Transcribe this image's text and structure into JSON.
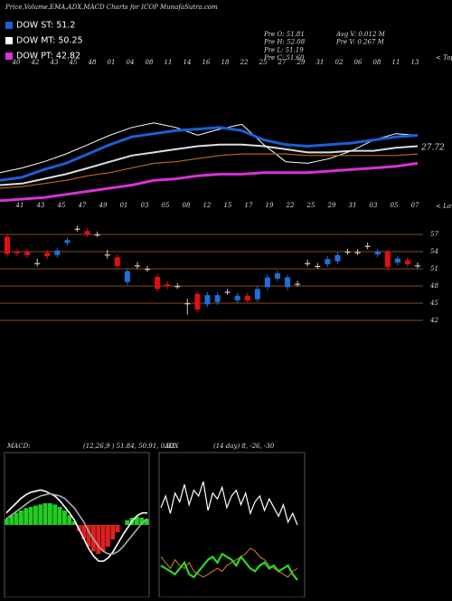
{
  "header": {
    "title": "Price,Volume,EMA,ADX,MACD Charts for ICOP MunafaSutra.com",
    "legend": [
      {
        "name": "DOW ST: 51.2",
        "color": "#1a5fd6"
      },
      {
        "name": "DOW MT: 50.25",
        "color": "#ffffff"
      },
      {
        "name": "DOW PT: 42.82",
        "color": "#d633d6"
      }
    ],
    "stats": [
      "Pre O: 51.81",
      "Pre H: 52.08",
      "Pre L: 51.19",
      "Pre C: 51.60",
      "Avg V: 0.012 M",
      "Pre V: 0.267 M"
    ]
  },
  "chart_data": [
    {
      "type": "line",
      "top_label": "< Tope",
      "bottom_label": "< Lowe",
      "annotation": "27.72",
      "top_categories": [
        "40",
        "42",
        "43",
        "45",
        "48",
        "01",
        "04",
        "08",
        "11",
        "14",
        "16",
        "18",
        "22",
        "25",
        "27",
        "29",
        "31",
        "02",
        "06",
        "08",
        "11",
        "13"
      ],
      "bottom_categories": [
        "41",
        "43",
        "45",
        "47",
        "49",
        "01",
        "03",
        "05",
        "08",
        "12",
        "15",
        "17",
        "19",
        "22",
        "25",
        "29",
        "31",
        "03",
        "05",
        "07"
      ],
      "ylim": [
        0,
        100
      ],
      "series": [
        {
          "name": "Price",
          "color": "#ffffff",
          "width": 1,
          "values": [
            24,
            27,
            31,
            36,
            42,
            48,
            53,
            56,
            53,
            48,
            52,
            55,
            42,
            31,
            30,
            33,
            38,
            45,
            49,
            48
          ]
        },
        {
          "name": "ST",
          "color": "#1a5fd6",
          "width": 3,
          "values": [
            19,
            21,
            26,
            30,
            36,
            42,
            47,
            49,
            51,
            52,
            53,
            51,
            45,
            42,
            41,
            42,
            43,
            45,
            47,
            48
          ]
        },
        {
          "name": "MT",
          "color": "#dddddd",
          "width": 2,
          "values": [
            16,
            17,
            20,
            23,
            27,
            31,
            35,
            37,
            39,
            41,
            42,
            42,
            41,
            39,
            37,
            37,
            38,
            38,
            40,
            41
          ]
        },
        {
          "name": "Long",
          "color": "#b8651b",
          "width": 1.2,
          "values": [
            14,
            15,
            17,
            19,
            22,
            24,
            27,
            30,
            31,
            33,
            35,
            36,
            36,
            36,
            35,
            35,
            35,
            35,
            35,
            36
          ]
        },
        {
          "name": "PT",
          "color": "#d633d6",
          "width": 3,
          "values": [
            6,
            7,
            8,
            10,
            12,
            14,
            16,
            19,
            20,
            22,
            23,
            23,
            24,
            24,
            24,
            25,
            26,
            27,
            28,
            30
          ]
        }
      ]
    },
    {
      "type": "candlestick",
      "ylim": [
        40,
        59
      ],
      "yticks": [
        57,
        54,
        51,
        48,
        45,
        42
      ],
      "up_color": "#1e6fd9",
      "down_color": "#e01010",
      "flat_color": "#cccccc",
      "grid_color": "#b8651b",
      "open": [
        56.6,
        54.0,
        54.0,
        52.0,
        53.8,
        53.4,
        55.5,
        58.0,
        57.6,
        57.0,
        53.5,
        53.0,
        48.7,
        51.6,
        51.0,
        49.6,
        48.3,
        48.0,
        45.0,
        46.6,
        44.8,
        45.2,
        47.0,
        45.5,
        46.3,
        45.7,
        47.8,
        49.3,
        47.8,
        48.4,
        52.0,
        51.5,
        51.8,
        52.3,
        54.0,
        53.9,
        55.0,
        53.5,
        53.9,
        52.1,
        52.5,
        51.6
      ],
      "high": [
        57.1,
        54.5,
        54.5,
        52.8,
        54.3,
        54.7,
        56.5,
        58.5,
        58.1,
        57.5,
        54.3,
        53.5,
        51.1,
        52.2,
        51.5,
        50.1,
        48.8,
        48.5,
        45.8,
        47.1,
        46.9,
        46.9,
        47.5,
        46.8,
        46.8,
        48.0,
        50.0,
        50.7,
        50.0,
        48.9,
        52.6,
        52.0,
        53.2,
        53.9,
        54.5,
        54.4,
        55.6,
        54.5,
        54.4,
        53.3,
        53.0,
        52.1
      ],
      "low": [
        53.1,
        53.2,
        52.9,
        51.4,
        52.7,
        52.9,
        55.0,
        57.5,
        56.5,
        56.5,
        52.8,
        51.0,
        48.2,
        51.0,
        50.5,
        47.0,
        47.4,
        47.5,
        43.0,
        43.4,
        44.3,
        44.7,
        46.5,
        45.0,
        45.0,
        45.2,
        47.3,
        48.8,
        47.3,
        47.9,
        51.4,
        51.0,
        51.3,
        51.8,
        53.5,
        53.4,
        54.4,
        53.0,
        50.8,
        51.6,
        51.3,
        51.1
      ],
      "close": [
        53.6,
        53.7,
        53.4,
        52.0,
        53.2,
        54.2,
        56.0,
        58.0,
        57.0,
        57.0,
        53.5,
        51.5,
        50.6,
        51.6,
        51.0,
        47.5,
        47.9,
        48.0,
        45.0,
        43.9,
        46.4,
        46.4,
        47.0,
        46.3,
        45.5,
        47.5,
        49.5,
        50.2,
        49.5,
        48.4,
        52.0,
        51.5,
        52.7,
        53.4,
        54.0,
        53.9,
        55.0,
        54.0,
        51.3,
        52.8,
        51.8,
        51.6
      ]
    },
    {
      "type": "macd",
      "title": "MACD:",
      "subtitle": "(12,26,9 ) 51.84, 50.91, 0.93",
      "ylim": [
        -60,
        60
      ],
      "pos_color": "#22cc22",
      "neg_color": "#e02020",
      "histogram": [
        5,
        8,
        10,
        12,
        14,
        15,
        16,
        17,
        18,
        18,
        17,
        15,
        12,
        8,
        3,
        -5,
        -12,
        -18,
        -22,
        -24,
        -22,
        -18,
        -12,
        -6,
        0,
        4,
        6,
        7,
        6,
        5
      ],
      "series": [
        {
          "name": "MACD",
          "color": "#ffffff",
          "width": 1.6,
          "values": [
            10,
            14,
            18,
            22,
            25,
            27,
            28,
            29,
            28,
            26,
            24,
            20,
            15,
            10,
            4,
            -4,
            -12,
            -20,
            -26,
            -30,
            -30,
            -27,
            -22,
            -15,
            -8,
            -2,
            4,
            8,
            10,
            10
          ]
        },
        {
          "name": "Signal",
          "color": "#aaaaaa",
          "width": 1.6,
          "values": [
            5,
            8,
            11,
            14,
            17,
            20,
            22,
            24,
            25,
            26,
            25,
            24,
            22,
            18,
            14,
            8,
            2,
            -6,
            -12,
            -18,
            -22,
            -24,
            -24,
            -22,
            -18,
            -13,
            -8,
            -3,
            2,
            5
          ]
        }
      ]
    },
    {
      "type": "adx",
      "title": "ADX",
      "subtitle": "(14 day) 8, -26, -30",
      "ylim": [
        0,
        100
      ],
      "series": [
        {
          "name": "+DI",
          "color": "#ffffff",
          "width": 1.2,
          "values": [
            62,
            70,
            58,
            72,
            66,
            78,
            64,
            74,
            70,
            80,
            60,
            72,
            68,
            76,
            62,
            70,
            74,
            64,
            72,
            58,
            66,
            70,
            60,
            68,
            62,
            56,
            64,
            52,
            58,
            50
          ]
        },
        {
          "name": "ADX",
          "color": "#22dd22",
          "width": 2.2,
          "values": [
            22,
            20,
            18,
            16,
            20,
            24,
            16,
            14,
            18,
            22,
            26,
            28,
            24,
            30,
            28,
            26,
            22,
            28,
            24,
            20,
            18,
            22,
            24,
            20,
            22,
            18,
            20,
            22,
            16,
            12
          ]
        },
        {
          "name": "-DI",
          "color": "#d9822b",
          "width": 1,
          "values": [
            28,
            24,
            20,
            26,
            22,
            20,
            24,
            18,
            16,
            14,
            16,
            18,
            20,
            18,
            22,
            24,
            26,
            28,
            30,
            34,
            32,
            28,
            26,
            22,
            20,
            18,
            16,
            14,
            18,
            20
          ]
        }
      ]
    }
  ]
}
